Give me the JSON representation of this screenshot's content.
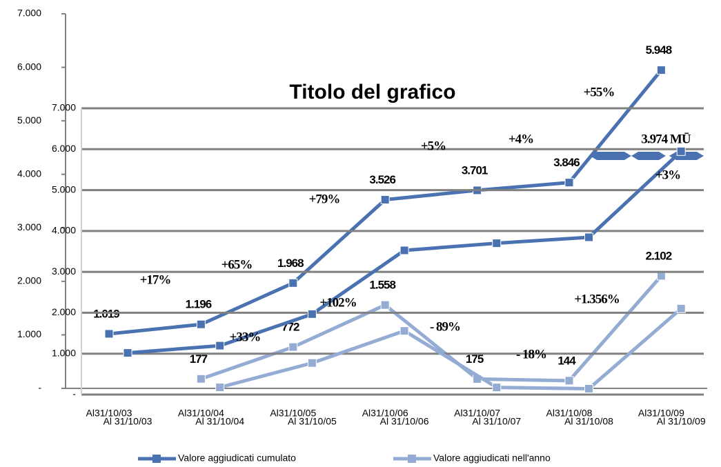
{
  "chart_data": [
    {
      "type": "line",
      "categories": [
        "Al31/10/03",
        "Al31/10/04",
        "Al31/10/05",
        "Al31/10/06",
        "Al31/10/07",
        "Al31/10/08",
        "Al31/10/09"
      ],
      "series": [
        {
          "name": "Valore aggiudicati cumulato",
          "color": "#4a72b0",
          "values": [
            1019,
            1196,
            1968,
            3526,
            3701,
            3846,
            5948
          ],
          "value_labels": [
            "1.019",
            "1.196",
            "1.968",
            "3.526",
            "3.701",
            "3.846",
            "5.948"
          ]
        },
        {
          "name": "Valore aggiudicati nell'anno",
          "color": "#94acd4",
          "values": [
            null,
            177,
            772,
            1558,
            175,
            144,
            2102
          ],
          "value_labels": [
            null,
            "177",
            "772",
            "1.558",
            "175",
            "144",
            "2.102"
          ]
        }
      ],
      "ylim": [
        0,
        7000
      ],
      "yticks": [
        {
          "value": 0,
          "label": "-"
        },
        {
          "value": 1000,
          "label": "1.000"
        },
        {
          "value": 2000,
          "label": "2.000"
        },
        {
          "value": 3000,
          "label": "3.000"
        },
        {
          "value": 4000,
          "label": "4.000"
        },
        {
          "value": 5000,
          "label": "5.000"
        },
        {
          "value": 6000,
          "label": "6.000"
        },
        {
          "value": 7000,
          "label": "7.000"
        }
      ],
      "grid": false,
      "legend": "bottom"
    },
    {
      "type": "line",
      "title": "Titolo del grafico",
      "categories": [
        "Al 31/10/03",
        "Al 31/10/04",
        "Al 31/10/05",
        "Al 31/10/06",
        "Al 31/10/07",
        "Al 31/10/08",
        "Al 31/10/09"
      ],
      "series": [
        {
          "name": "Valore aggiudicati cumulato",
          "color": "#4a72b0",
          "values": [
            1019,
            1196,
            1968,
            3526,
            3701,
            3846,
            5948
          ]
        },
        {
          "name": "Valore aggiudicati nell'anno",
          "color": "#94acd4",
          "values": [
            null,
            177,
            772,
            1558,
            175,
            144,
            2102
          ]
        }
      ],
      "ylim": [
        0,
        7000
      ],
      "yticks": [
        {
          "value": 0,
          "label": "-"
        },
        {
          "value": 1000,
          "label": "1.000"
        },
        {
          "value": 2000,
          "label": "2.000"
        },
        {
          "value": 3000,
          "label": "3.000"
        },
        {
          "value": 4000,
          "label": "4.000"
        },
        {
          "value": 5000,
          "label": "5.000"
        },
        {
          "value": 6000,
          "label": "6.000"
        },
        {
          "value": 7000,
          "label": "7.000"
        }
      ],
      "grid": true,
      "annotations": [
        {
          "text": "+17%",
          "color": "#000000"
        },
        {
          "text": "+65%",
          "color": "#000000"
        },
        {
          "text": "+79%",
          "color": "#000000"
        },
        {
          "text": "+5%",
          "color": "#000000"
        },
        {
          "text": "+4%",
          "color": "#000000"
        },
        {
          "text": "+55%",
          "color": "#000000"
        },
        {
          "text": "+3%",
          "color": "#000000"
        },
        {
          "text": "+33%",
          "color": "#000000"
        },
        {
          "text": "+102%",
          "color": "#000000"
        },
        {
          "text": "- 89%",
          "color": "#e02020"
        },
        {
          "text": "- 18%",
          "color": "#e02020"
        },
        {
          "text": "+1.356%",
          "color": "#000000"
        },
        {
          "text": "3.974  MŪ",
          "color": "#000000"
        }
      ]
    }
  ]
}
